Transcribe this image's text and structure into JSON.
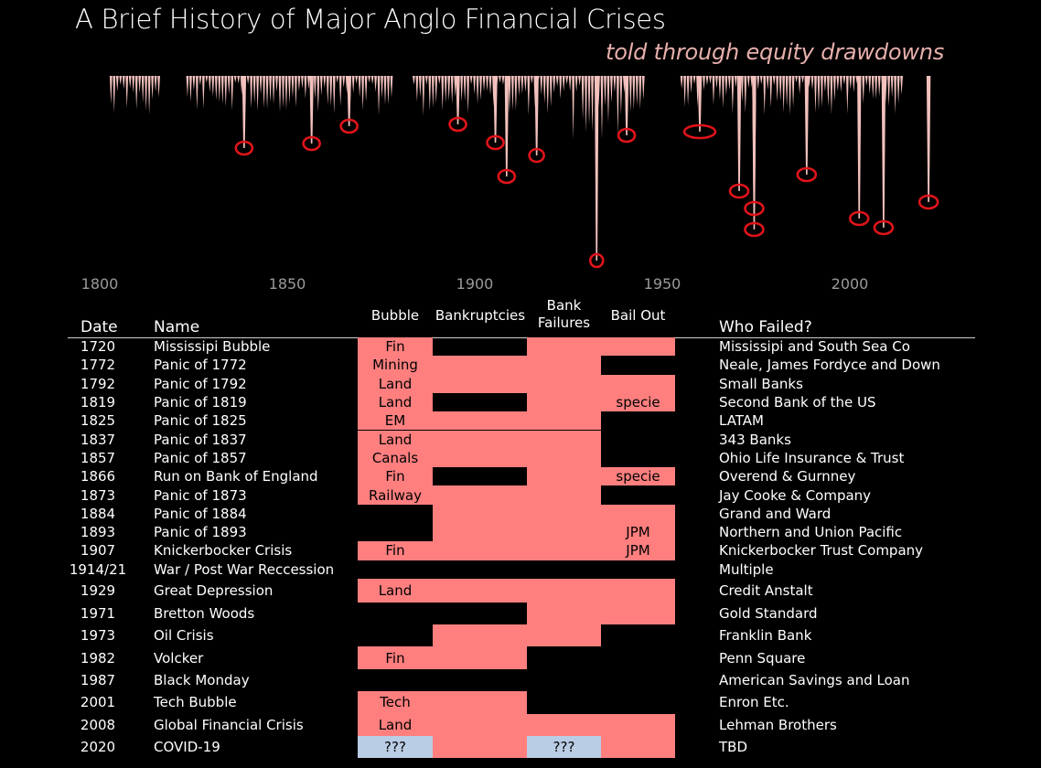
{
  "title": "A Brief History of Major Anglo Financial Crises",
  "subtitle": "told through equity drawdowns",
  "colors": {
    "background": "#000000",
    "drawdown": "#f2c1bd",
    "marker": "#e0141a",
    "active": "#ff7f7f",
    "unknown": "#b9cde5",
    "text": "#ffffff"
  },
  "chart_data": {
    "type": "area",
    "x_ticks": [
      "1800",
      "1850",
      "1900",
      "1950",
      "2000"
    ],
    "xlim": [
      1800,
      2022
    ],
    "marked_drawdowns": [
      {
        "x": 1838.5
      },
      {
        "x": 1856.5
      },
      {
        "x": 1866.5
      },
      {
        "x": 1895.5
      },
      {
        "x": 1905.5
      },
      {
        "x": 1908.5
      },
      {
        "x": 1916.5
      },
      {
        "x": 1932.5
      },
      {
        "x": 1940.5
      },
      {
        "x": 1960
      },
      {
        "x": 1970.5
      },
      {
        "x": 1974.5
      },
      {
        "x": 1974.5
      },
      {
        "x": 1988.5
      },
      {
        "x": 2002.5
      },
      {
        "x": 2009
      },
      {
        "x": 2021
      }
    ]
  },
  "table": {
    "headers": {
      "date": "Date",
      "name": "Name",
      "bubble": "Bubble",
      "bankruptcies": "Bankruptcies",
      "bank_failures_1": "Bank",
      "bank_failures_2": "Failures",
      "bailout": "Bail Out",
      "who_failed": "Who Failed?"
    },
    "rows": [
      {
        "date": "1720",
        "name": "Mississipi Bubble",
        "who": "Mississipi and South Sea Co",
        "cols": [
          {
            "on": true,
            "text": "Fin"
          },
          {
            "on": false,
            "text": ""
          },
          {
            "on": true,
            "text": ""
          },
          {
            "on": true,
            "text": ""
          }
        ]
      },
      {
        "date": "1772",
        "name": "Panic of 1772",
        "who": "Neale, James Fordyce and Down",
        "cols": [
          {
            "on": true,
            "text": "Mining"
          },
          {
            "on": true,
            "text": ""
          },
          {
            "on": true,
            "text": ""
          },
          {
            "on": false,
            "text": ""
          }
        ]
      },
      {
        "date": "1792",
        "name": "Panic of 1792",
        "who": "Small Banks",
        "cols": [
          {
            "on": true,
            "text": "Land"
          },
          {
            "on": true,
            "text": ""
          },
          {
            "on": true,
            "text": ""
          },
          {
            "on": true,
            "text": ""
          }
        ]
      },
      {
        "date": "1819",
        "name": "Panic of 1819",
        "who": "Second Bank of the US",
        "cols": [
          {
            "on": true,
            "text": "Land"
          },
          {
            "on": false,
            "text": ""
          },
          {
            "on": true,
            "text": ""
          },
          {
            "on": true,
            "text": "specie"
          }
        ]
      },
      {
        "date": "1825",
        "name": "Panic of 1825",
        "who": "LATAM",
        "cols": [
          {
            "on": true,
            "text": "EM"
          },
          {
            "on": true,
            "text": ""
          },
          {
            "on": true,
            "text": ""
          },
          {
            "on": false,
            "text": ""
          }
        ]
      },
      {
        "date": "1837",
        "name": "Panic of 1837",
        "who": "343 Banks",
        "cols": [
          {
            "on": true,
            "text": "Land"
          },
          {
            "on": true,
            "text": ""
          },
          {
            "on": true,
            "text": ""
          },
          {
            "on": false,
            "text": ""
          }
        ]
      },
      {
        "date": "1857",
        "name": "Panic of 1857",
        "who": "Ohio Life Insurance & Trust",
        "cols": [
          {
            "on": true,
            "text": "Canals"
          },
          {
            "on": true,
            "text": ""
          },
          {
            "on": true,
            "text": ""
          },
          {
            "on": false,
            "text": ""
          }
        ]
      },
      {
        "date": "1866",
        "name": "Run on Bank of England",
        "who": "Overend & Gurnney",
        "cols": [
          {
            "on": true,
            "text": "Fin"
          },
          {
            "on": false,
            "text": ""
          },
          {
            "on": true,
            "text": ""
          },
          {
            "on": true,
            "text": "specie"
          }
        ]
      },
      {
        "date": "1873",
        "name": "Panic of 1873",
        "who": "Jay Cooke & Company",
        "cols": [
          {
            "on": true,
            "text": "Railway"
          },
          {
            "on": true,
            "text": ""
          },
          {
            "on": true,
            "text": ""
          },
          {
            "on": false,
            "text": ""
          }
        ]
      },
      {
        "date": "1884",
        "name": "Panic of 1884",
        "who": "Grand and Ward",
        "cols": [
          {
            "on": false,
            "text": ""
          },
          {
            "on": true,
            "text": ""
          },
          {
            "on": true,
            "text": ""
          },
          {
            "on": true,
            "text": ""
          }
        ]
      },
      {
        "date": "1893",
        "name": "Panic of 1893",
        "who": "Northern and Union Pacific",
        "cols": [
          {
            "on": false,
            "text": ""
          },
          {
            "on": true,
            "text": ""
          },
          {
            "on": true,
            "text": ""
          },
          {
            "on": true,
            "text": "JPM"
          }
        ]
      },
      {
        "date": "1907",
        "name": "Knickerbocker Crisis",
        "who": "Knickerbocker Trust Company",
        "cols": [
          {
            "on": true,
            "text": "Fin"
          },
          {
            "on": true,
            "text": ""
          },
          {
            "on": true,
            "text": ""
          },
          {
            "on": true,
            "text": "JPM"
          }
        ]
      },
      {
        "date": "1914/21",
        "name": "War / Post War Reccession",
        "who": "Multiple",
        "cols": [
          {
            "on": false,
            "text": ""
          },
          {
            "on": false,
            "text": ""
          },
          {
            "on": false,
            "text": ""
          },
          {
            "on": false,
            "text": ""
          }
        ]
      },
      {
        "date": "1929",
        "name": "Great Depression",
        "who": "Credit Anstalt",
        "cols": [
          {
            "on": true,
            "text": "Land"
          },
          {
            "on": true,
            "text": ""
          },
          {
            "on": true,
            "text": ""
          },
          {
            "on": true,
            "text": ""
          }
        ]
      },
      {
        "date": "1971",
        "name": "Bretton Woods",
        "who": "Gold Standard",
        "cols": [
          {
            "on": false,
            "text": ""
          },
          {
            "on": false,
            "text": ""
          },
          {
            "on": true,
            "text": ""
          },
          {
            "on": true,
            "text": ""
          }
        ]
      },
      {
        "date": "1973",
        "name": "Oil Crisis",
        "who": "Franklin Bank",
        "cols": [
          {
            "on": false,
            "text": ""
          },
          {
            "on": true,
            "text": ""
          },
          {
            "on": true,
            "text": ""
          },
          {
            "on": false,
            "text": ""
          }
        ]
      },
      {
        "date": "1982",
        "name": "Volcker",
        "who": "Penn Square",
        "cols": [
          {
            "on": true,
            "text": "Fin"
          },
          {
            "on": true,
            "text": ""
          },
          {
            "on": false,
            "text": ""
          },
          {
            "on": false,
            "text": ""
          }
        ]
      },
      {
        "date": "1987",
        "name": "Black Monday",
        "who": "American Savings and Loan",
        "cols": [
          {
            "on": false,
            "text": ""
          },
          {
            "on": false,
            "text": ""
          },
          {
            "on": false,
            "text": ""
          },
          {
            "on": false,
            "text": ""
          }
        ]
      },
      {
        "date": "2001",
        "name": "Tech Bubble",
        "who": "Enron Etc.",
        "cols": [
          {
            "on": true,
            "text": "Tech"
          },
          {
            "on": true,
            "text": ""
          },
          {
            "on": false,
            "text": ""
          },
          {
            "on": false,
            "text": ""
          }
        ]
      },
      {
        "date": "2008",
        "name": "Global Financial Crisis",
        "who": "Lehman Brothers",
        "cols": [
          {
            "on": true,
            "text": "Land"
          },
          {
            "on": true,
            "text": ""
          },
          {
            "on": true,
            "text": ""
          },
          {
            "on": true,
            "text": ""
          }
        ]
      },
      {
        "date": "2020",
        "name": "COVID-19",
        "who": "TBD",
        "cols": [
          {
            "on": "q",
            "text": "???"
          },
          {
            "on": true,
            "text": ""
          },
          {
            "on": "q",
            "text": "???"
          },
          {
            "on": true,
            "text": ""
          }
        ]
      }
    ]
  }
}
